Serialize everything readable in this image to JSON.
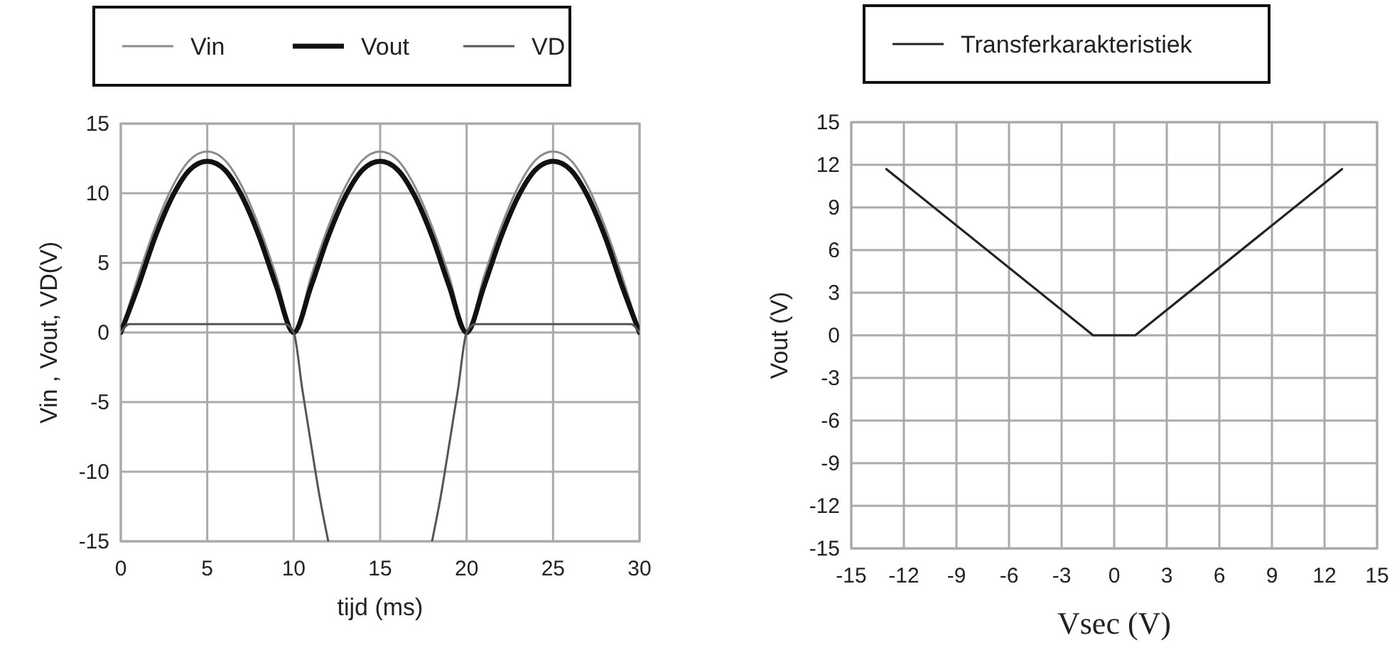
{
  "chart_data": [
    {
      "type": "line",
      "xlabel": "tijd (ms)",
      "ylabel": "Vin , Vout, VD(V)",
      "xlim": [
        0,
        30
      ],
      "ylim": [
        -15,
        15
      ],
      "xticks": [
        0,
        5,
        10,
        15,
        20,
        25,
        30
      ],
      "yticks": [
        -15,
        -10,
        -5,
        0,
        5,
        10,
        15
      ],
      "grid": true,
      "legend": "top",
      "series": [
        {
          "name": "Vin",
          "color": "#8c8c8c",
          "x": [
            0,
            1,
            2,
            3,
            4,
            5,
            6,
            7,
            8,
            9,
            10,
            11,
            12,
            13,
            14,
            15,
            16,
            17,
            18,
            19,
            20,
            21,
            22,
            23,
            24,
            25,
            26,
            27,
            28,
            29,
            30
          ],
          "values": [
            0,
            4.0,
            7.6,
            10.5,
            12.4,
            13,
            12.4,
            10.5,
            7.6,
            4.0,
            0,
            4.0,
            7.6,
            10.5,
            12.4,
            13,
            12.4,
            10.5,
            7.6,
            4.0,
            0,
            4.0,
            7.6,
            10.5,
            12.4,
            13,
            12.4,
            10.5,
            7.6,
            4.0,
            0
          ]
        },
        {
          "name": "Vout",
          "color": "#111111",
          "x": [
            0,
            1,
            2,
            3,
            4,
            5,
            6,
            7,
            8,
            9,
            10,
            11,
            12,
            13,
            14,
            15,
            16,
            17,
            18,
            19,
            20,
            21,
            22,
            23,
            24,
            25,
            26,
            27,
            28,
            29,
            30
          ],
          "values": [
            0,
            3.3,
            6.9,
            9.8,
            11.7,
            12.3,
            11.7,
            9.8,
            6.9,
            3.3,
            0,
            3.3,
            6.9,
            9.8,
            11.7,
            12.3,
            11.7,
            9.8,
            6.9,
            3.3,
            0,
            3.3,
            6.9,
            9.8,
            11.7,
            12.3,
            11.7,
            9.8,
            6.9,
            3.3,
            0
          ]
        },
        {
          "name": "VD",
          "color": "#555555",
          "x": [
            0,
            0.5,
            9.5,
            10,
            10.5,
            11,
            11.5,
            12,
            15,
            18,
            18.5,
            19,
            19.5,
            20,
            20.5,
            29.5,
            30
          ],
          "values": [
            0,
            0.6,
            0.6,
            0,
            -4.1,
            -8.0,
            -11.8,
            -15,
            null,
            -15,
            -11.8,
            -8.0,
            -4.1,
            0,
            0.6,
            0.6,
            0
          ]
        }
      ]
    },
    {
      "type": "line",
      "xlabel": "Vsec (V)",
      "ylabel": "Vout (V)",
      "xlim": [
        -15,
        15
      ],
      "ylim": [
        -15,
        15
      ],
      "xticks": [
        -15,
        -12,
        -9,
        -6,
        -3,
        0,
        3,
        6,
        9,
        12,
        15
      ],
      "yticks": [
        -15,
        -12,
        -9,
        -6,
        -3,
        0,
        3,
        6,
        9,
        12,
        15
      ],
      "grid": true,
      "legend": "top",
      "series": [
        {
          "name": "Transferkarakteristiek",
          "color": "#222222",
          "x": [
            -13,
            -1.2,
            1.2,
            13
          ],
          "values": [
            11.7,
            0,
            0,
            11.7
          ]
        }
      ]
    }
  ]
}
